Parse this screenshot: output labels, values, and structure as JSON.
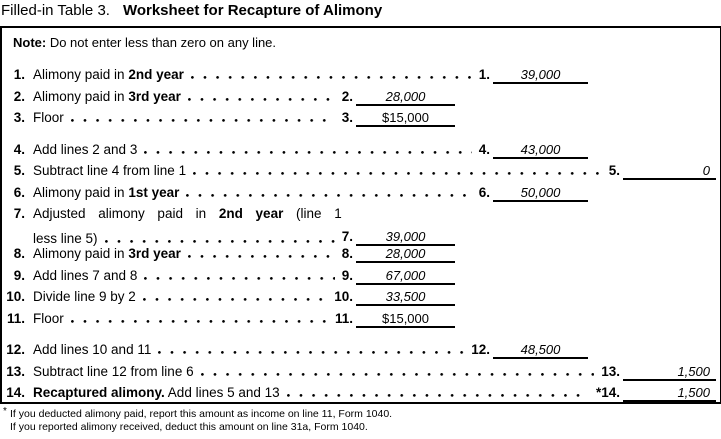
{
  "title": {
    "prefix": "Filled-in Table 3.",
    "main": "Worksheet for Recapture of Alimony"
  },
  "note": {
    "label": "Note:",
    "text": " Do not enter less than zero on any line."
  },
  "rows": [
    {
      "num": "1.",
      "segments": [
        {
          "text": "Alimony paid in ",
          "bold": false
        },
        {
          "text": "2nd year",
          "bold": true
        }
      ],
      "right_num": "1.",
      "amount": "39,000",
      "col": "b",
      "preprinted": false,
      "gap_before": false,
      "two_line": false
    },
    {
      "num": "2.",
      "segments": [
        {
          "text": "Alimony paid in ",
          "bold": false
        },
        {
          "text": "3rd year",
          "bold": true
        }
      ],
      "right_num": "2.",
      "amount": "28,000",
      "col": "a",
      "preprinted": false,
      "gap_before": false,
      "two_line": false
    },
    {
      "num": "3.",
      "segments": [
        {
          "text": "Floor",
          "bold": false
        }
      ],
      "right_num": "3.",
      "amount": "$15,000",
      "col": "a",
      "preprinted": true,
      "gap_before": false,
      "two_line": false
    },
    {
      "num": "4.",
      "segments": [
        {
          "text": "Add lines 2 and 3",
          "bold": false
        }
      ],
      "right_num": "4.",
      "amount": "43,000",
      "col": "b",
      "preprinted": false,
      "gap_before": true,
      "two_line": false
    },
    {
      "num": "5.",
      "segments": [
        {
          "text": "Subtract line 4 from line 1",
          "bold": false
        }
      ],
      "right_num": "5.",
      "amount": "0",
      "col": "c",
      "preprinted": false,
      "gap_before": false,
      "two_line": false
    },
    {
      "num": "6.",
      "segments": [
        {
          "text": "Alimony paid in ",
          "bold": false
        },
        {
          "text": "1st year",
          "bold": true
        }
      ],
      "right_num": "6.",
      "amount": "50,000",
      "col": "b",
      "preprinted": false,
      "gap_before": false,
      "two_line": false
    },
    {
      "num": "7.",
      "two_line": true,
      "line1_segments": [
        {
          "text": "Adjusted alimony paid in ",
          "bold": false
        },
        {
          "text": "2nd year",
          "bold": true
        },
        {
          "text": " (line 1",
          "bold": false
        }
      ],
      "line2": "less line 5)",
      "right_num": "7.",
      "amount": "39,000",
      "col": "a",
      "preprinted": false,
      "gap_before": false
    },
    {
      "num": "8.",
      "segments": [
        {
          "text": "Alimony paid in ",
          "bold": false
        },
        {
          "text": "3rd year",
          "bold": true
        }
      ],
      "right_num": "8.",
      "amount": "28,000",
      "col": "a",
      "preprinted": false,
      "gap_before": false,
      "two_line": false
    },
    {
      "num": "9.",
      "segments": [
        {
          "text": "Add lines 7 and 8",
          "bold": false
        }
      ],
      "right_num": "9.",
      "amount": "67,000",
      "col": "a",
      "preprinted": false,
      "gap_before": false,
      "two_line": false
    },
    {
      "num": "10.",
      "segments": [
        {
          "text": "Divide line 9 by 2",
          "bold": false
        }
      ],
      "right_num": "10.",
      "amount": "33,500",
      "col": "a",
      "preprinted": false,
      "gap_before": false,
      "two_line": false
    },
    {
      "num": "11.",
      "segments": [
        {
          "text": "Floor",
          "bold": false
        }
      ],
      "right_num": "11.",
      "amount": "$15,000",
      "col": "a",
      "preprinted": true,
      "gap_before": false,
      "two_line": false
    },
    {
      "num": "12.",
      "segments": [
        {
          "text": "Add lines 10 and 11",
          "bold": false
        }
      ],
      "right_num": "12.",
      "amount": "48,500",
      "col": "b",
      "preprinted": false,
      "gap_before": true,
      "two_line": false
    },
    {
      "num": "13.",
      "segments": [
        {
          "text": "Subtract line 12 from line 6",
          "bold": false
        }
      ],
      "right_num": "13.",
      "amount": "1,500",
      "col": "c",
      "preprinted": false,
      "gap_before": false,
      "two_line": false
    },
    {
      "num": "14.",
      "segments": [
        {
          "text": "Recaptured alimony.",
          "bold": true
        },
        {
          "text": " Add lines 5 and 13",
          "bold": false
        }
      ],
      "right_num": "*14.",
      "amount": "1,500",
      "col": "c",
      "preprinted": false,
      "gap_before": false,
      "two_line": false
    }
  ],
  "footnotes": [
    {
      "marker": "*",
      "text": "If you deducted alimony paid, report this amount as income on line 11, Form 1040."
    },
    {
      "marker": "",
      "text": "If you reported alimony received, deduct this amount on line 31a, Form 1040."
    }
  ]
}
